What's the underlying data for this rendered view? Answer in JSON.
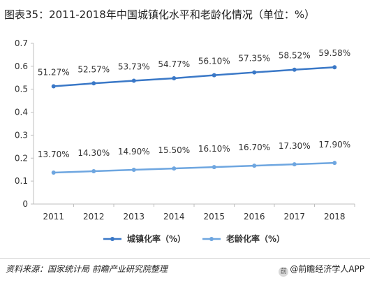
{
  "title": "图表35：2011-2018年中国城镇化水平和老龄化情况（单位：%）",
  "source": "资料来源：国家统计局 前瞻产业研究院整理",
  "brand": "@前瞻经济学人APP",
  "colors": {
    "urban": "#3a78c7",
    "aging": "#6ea6e0",
    "axis": "#bfbfbf",
    "grid": "#ffffff"
  },
  "chart_data": {
    "type": "line",
    "x": [
      "2011",
      "2012",
      "2013",
      "2014",
      "2015",
      "2016",
      "2017",
      "2018"
    ],
    "ylim": [
      0,
      0.7
    ],
    "yticks": [
      "0",
      "0.1",
      "0.2",
      "0.3",
      "0.4",
      "0.5",
      "0.6",
      "0.7"
    ],
    "series": [
      {
        "name": "城镇化率（%）",
        "values": [
          0.5127,
          0.5257,
          0.5373,
          0.5477,
          0.561,
          0.5735,
          0.5852,
          0.5958
        ],
        "labels": [
          "51.27%",
          "52.57%",
          "53.73%",
          "54.77%",
          "56.10%",
          "57.35%",
          "58.52%",
          "59.58%"
        ]
      },
      {
        "name": "老龄化率（%）",
        "values": [
          0.137,
          0.143,
          0.149,
          0.155,
          0.161,
          0.167,
          0.173,
          0.179
        ],
        "labels": [
          "13.70%",
          "14.30%",
          "14.90%",
          "15.50%",
          "16.10%",
          "16.70%",
          "17.30%",
          "17.90%"
        ]
      }
    ],
    "legend_position": "bottom-center"
  }
}
